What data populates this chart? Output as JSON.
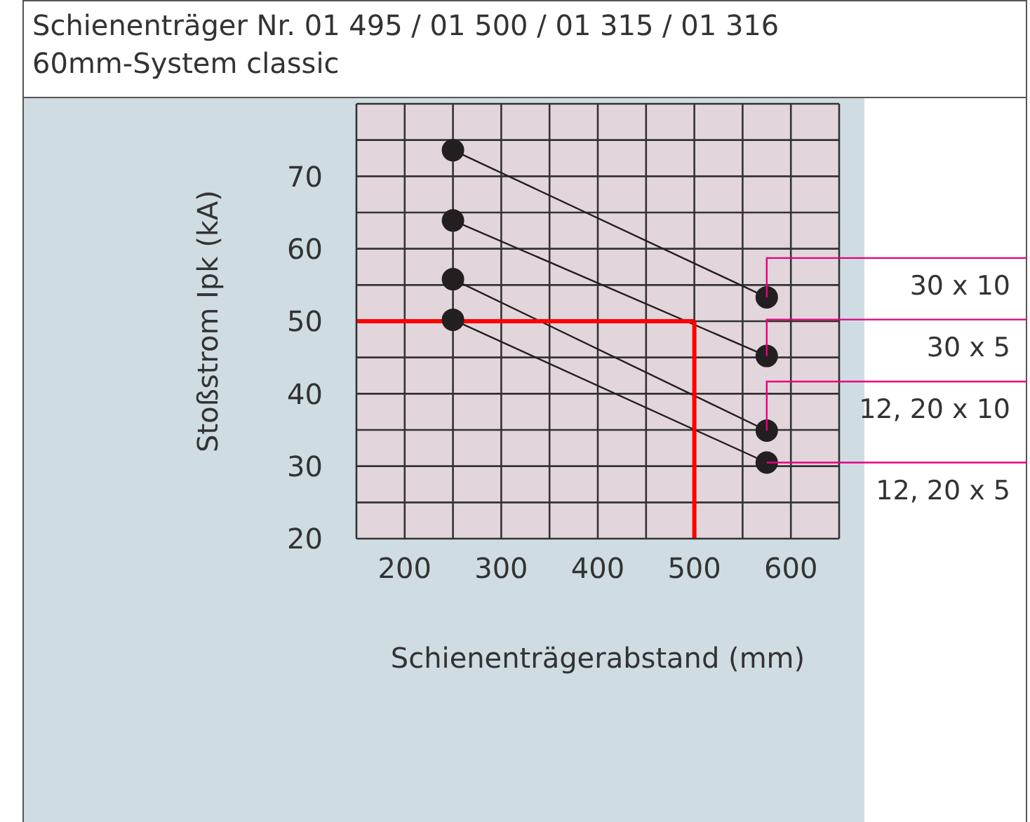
{
  "chart_data": {
    "type": "line",
    "title": "Schienenträger Nr. 01 495 / 01 500 / 01 315 / 01 316",
    "subtitle": "60mm-System classic",
    "xlabel": "Schienenträgerabstand (mm)",
    "ylabel": "Stoßstrom Ipk (kA)",
    "x": [
      250,
      575
    ],
    "series": [
      {
        "name": "30 x 10",
        "color": "#231f20",
        "values": [
          73.6,
          53.3
        ]
      },
      {
        "name": "30 x 5",
        "color": "#231f20",
        "values": [
          63.9,
          45.2
        ]
      },
      {
        "name": "12, 20 x 10",
        "color": "#231f20",
        "values": [
          55.8,
          34.9
        ]
      },
      {
        "name": "12, 20 x 5",
        "color": "#231f20",
        "values": [
          50.2,
          30.5
        ]
      }
    ],
    "xlim": [
      150,
      650
    ],
    "xticks": [
      {
        "value": 150,
        "label": null
      },
      200,
      {
        "value": 250,
        "label": null
      },
      300,
      {
        "value": 350,
        "label": null
      },
      400,
      {
        "value": 450,
        "label": null
      },
      500,
      {
        "value": 550,
        "label": null
      },
      600,
      {
        "value": 650,
        "label": null
      }
    ],
    "ylim": [
      20,
      80
    ],
    "yticks": [
      20,
      {
        "value": 25,
        "label": null
      },
      30,
      {
        "value": 35,
        "label": null
      },
      40,
      {
        "value": 45,
        "label": null
      },
      50,
      {
        "value": 55,
        "label": null
      },
      60,
      {
        "value": 65,
        "label": null
      },
      70,
      {
        "value": 75,
        "label": null
      },
      {
        "value": 80,
        "label": null
      }
    ],
    "grid": true,
    "marker": "circle",
    "line_style": "solid",
    "legend": false,
    "ref_lines": [
      {
        "axis": "y",
        "value": 50,
        "color": "#ff0000"
      },
      {
        "axis": "x",
        "value": 500,
        "color": "#ff0000"
      }
    ]
  }
}
